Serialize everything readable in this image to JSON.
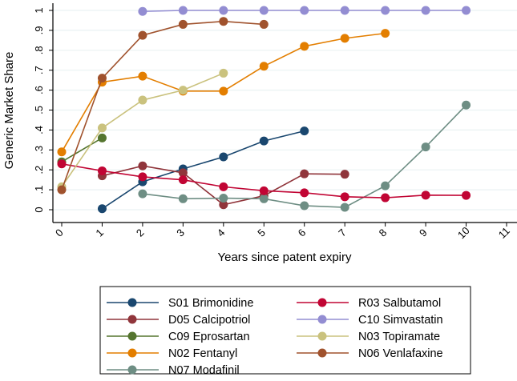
{
  "chart_data": {
    "type": "line",
    "title": "",
    "xlabel": "Years since patent expiry",
    "ylabel": "Generic Market Share",
    "xlim": [
      0,
      11
    ],
    "ylim": [
      0,
      1
    ],
    "x_ticks": [
      "0",
      "1",
      "2",
      "3",
      "4",
      "5",
      "6",
      "7",
      "8",
      "9",
      "10",
      "11"
    ],
    "y_ticks": [
      "0",
      ".1",
      ".2",
      ".3",
      ".4",
      ".5",
      ".6",
      ".7",
      ".8",
      ".9",
      "1"
    ],
    "grid": true,
    "legend_position": "bottom",
    "series": [
      {
        "name": "S01 Brimonidine",
        "color": "#1a476f",
        "x": [
          1,
          2,
          3,
          4,
          5,
          6
        ],
        "y": [
          0.005,
          0.14,
          0.205,
          0.265,
          0.345,
          0.395
        ]
      },
      {
        "name": "D05 Calcipotriol",
        "color": "#90353b",
        "x": [
          1,
          2,
          3,
          4,
          5,
          6,
          7
        ],
        "y": [
          0.17,
          0.22,
          0.185,
          0.025,
          0.07,
          0.18,
          0.178
        ]
      },
      {
        "name": "C09 Eprosartan",
        "color": "#55752f",
        "x": [
          0,
          1
        ],
        "y": [
          0.24,
          0.36
        ]
      },
      {
        "name": "N02 Fentanyl",
        "color": "#e37e00",
        "x": [
          0,
          1,
          2,
          3,
          4,
          5,
          6,
          7,
          8
        ],
        "y": [
          0.29,
          0.64,
          0.67,
          0.595,
          0.595,
          0.72,
          0.82,
          0.86,
          0.885
        ]
      },
      {
        "name": "N07 Modafinil",
        "color": "#6e8e84",
        "x": [
          2,
          3,
          4,
          5,
          6,
          7,
          8,
          9,
          10
        ],
        "y": [
          0.08,
          0.055,
          0.058,
          0.055,
          0.02,
          0.012,
          0.12,
          0.315,
          0.525
        ]
      },
      {
        "name": "R03 Salbutamol",
        "color": "#c10534",
        "x": [
          0,
          1,
          2,
          3,
          4,
          5,
          6,
          7,
          8,
          9,
          10
        ],
        "y": [
          0.23,
          0.195,
          0.165,
          0.15,
          0.115,
          0.095,
          0.085,
          0.065,
          0.06,
          0.073,
          0.072
        ]
      },
      {
        "name": "C10 Simvastatin",
        "color": "#938dd2",
        "x": [
          2,
          3,
          4,
          5,
          6,
          7,
          8,
          9,
          10
        ],
        "y": [
          0.995,
          1,
          1,
          1,
          1,
          1,
          1,
          1,
          1
        ]
      },
      {
        "name": "N03 Topiramate",
        "color": "#cac27e",
        "x": [
          0,
          1,
          2,
          3,
          4
        ],
        "y": [
          0.115,
          0.41,
          0.55,
          0.6,
          0.685
        ]
      },
      {
        "name": "N06 Venlafaxine",
        "color": "#a0522d",
        "x": [
          0,
          1,
          2,
          3,
          4,
          5
        ],
        "y": [
          0.1,
          0.66,
          0.875,
          0.93,
          0.945,
          0.93
        ]
      }
    ]
  }
}
